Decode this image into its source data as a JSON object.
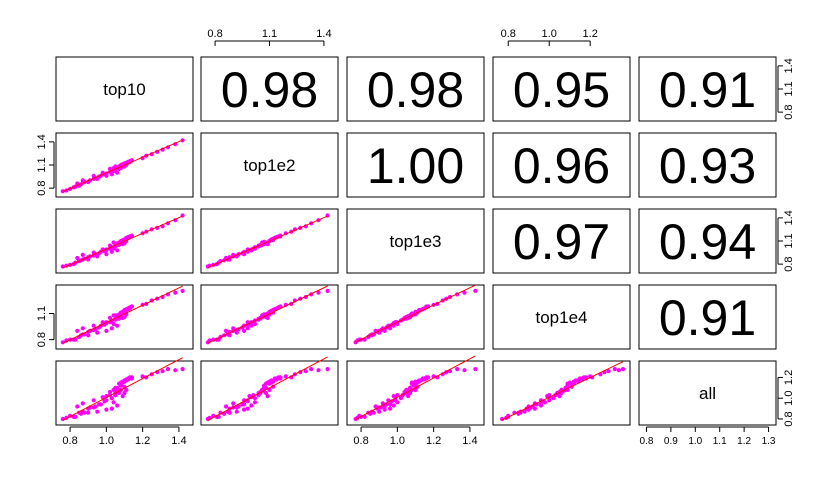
{
  "chart_data": {
    "type": "scatter",
    "variables": [
      "top10",
      "top1e2",
      "top1e3",
      "top1e4",
      "all"
    ],
    "correlations": [
      [
        "",
        "0.98",
        "0.98",
        "0.95",
        "0.91"
      ],
      [
        "",
        "",
        "1.00",
        "0.96",
        "0.93"
      ],
      [
        "",
        "",
        "",
        "0.97",
        "0.94"
      ],
      [
        "",
        "",
        "",
        "",
        "0.91"
      ],
      [
        "",
        "",
        "",
        "",
        ""
      ]
    ],
    "axes": [
      {
        "domain": [
          0.75,
          1.45
        ],
        "ticks": [
          0.8,
          1.0,
          1.2,
          1.4
        ],
        "tick_labels": [
          "0.8",
          "1.0",
          "1.2",
          "1.4"
        ]
      },
      {
        "domain": [
          0.75,
          1.45
        ],
        "ticks": [
          0.8,
          1.1,
          1.4
        ],
        "tick_labels": [
          "0.8",
          "1.1",
          "1.4"
        ]
      },
      {
        "domain": [
          0.75,
          1.45
        ],
        "ticks": [
          0.8,
          1.0,
          1.2,
          1.4
        ],
        "tick_labels": [
          "0.8",
          "1.0",
          "1.2",
          "1.4"
        ]
      },
      {
        "domain": [
          0.75,
          1.37
        ],
        "ticks": [
          0.8,
          1.0,
          1.2
        ],
        "tick_labels": [
          "0.8",
          "1.0",
          "1.2"
        ]
      },
      {
        "domain": [
          0.79,
          1.31
        ],
        "ticks": [
          0.8,
          0.9,
          1.0,
          1.1,
          1.2,
          1.3
        ],
        "tick_labels": [
          "0.8",
          "0.9",
          "1.0",
          "1.1",
          "1.2",
          "1.3"
        ]
      }
    ],
    "left_axis_ticks": {
      "1": {
        "ticks": [
          0.8,
          1.1,
          1.4
        ],
        "tick_labels": [
          "0.8",
          "1.1",
          "1.4"
        ]
      },
      "3": {
        "ticks": [
          0.8,
          1.1
        ],
        "tick_labels": [
          "0.8",
          "1.1"
        ]
      }
    },
    "right_axis_ticks": {
      "2": {
        "ticks": [
          0.8,
          1.1,
          1.4
        ],
        "tick_labels": [
          "0.8",
          "1.1",
          "1.4"
        ]
      },
      "4": {
        "ticks": [
          0.8,
          1.0,
          1.2
        ],
        "tick_labels": [
          "0.8",
          "1.0",
          "1.2"
        ]
      }
    },
    "point_color": "#ff00ff",
    "fit_line_color": "#ff0000",
    "points": [
      [
        0.76,
        0.76,
        0.77,
        0.77,
        0.8
      ],
      [
        0.78,
        0.77,
        0.78,
        0.79,
        0.81
      ],
      [
        0.8,
        0.79,
        0.79,
        0.8,
        0.83
      ],
      [
        0.82,
        0.81,
        0.8,
        0.8,
        0.82
      ],
      [
        0.83,
        0.82,
        0.82,
        0.8,
        0.82
      ],
      [
        0.85,
        0.83,
        0.84,
        0.83,
        0.86
      ],
      [
        0.86,
        0.85,
        0.85,
        0.85,
        0.85
      ],
      [
        0.87,
        0.87,
        0.86,
        0.86,
        0.87
      ],
      [
        0.88,
        0.88,
        0.87,
        0.86,
        0.86
      ],
      [
        0.9,
        0.88,
        0.89,
        0.89,
        0.9
      ],
      [
        0.91,
        0.9,
        0.9,
        0.9,
        0.91
      ],
      [
        0.93,
        0.92,
        0.91,
        0.91,
        0.91
      ],
      [
        0.94,
        0.93,
        0.93,
        0.92,
        0.92
      ],
      [
        0.96,
        0.95,
        0.94,
        0.94,
        0.94
      ],
      [
        0.97,
        0.96,
        0.96,
        0.96,
        0.94
      ],
      [
        0.99,
        0.98,
        0.97,
        0.97,
        0.97
      ],
      [
        1.0,
        0.98,
        0.99,
        1.0,
        0.98
      ],
      [
        1.02,
        1.01,
        1.0,
        1.0,
        1.03
      ],
      [
        1.03,
        1.02,
        1.02,
        1.02,
        1.0
      ],
      [
        1.05,
        1.04,
        1.04,
        1.04,
        1.05
      ],
      [
        1.07,
        1.05,
        1.05,
        1.04,
        1.05
      ],
      [
        1.08,
        1.06,
        1.07,
        1.06,
        1.08
      ],
      [
        0.9,
        0.88,
        0.86,
        0.85,
        0.86
      ],
      [
        0.95,
        0.92,
        0.9,
        0.88,
        0.87
      ],
      [
        1.0,
        0.96,
        0.93,
        0.9,
        0.89
      ],
      [
        0.93,
        0.96,
        0.95,
        0.96,
        0.98
      ],
      [
        0.98,
        1.0,
        0.99,
        1.0,
        1.01
      ],
      [
        1.02,
        1.05,
        1.04,
        1.05,
        1.06
      ],
      [
        1.05,
        1.08,
        1.07,
        1.08,
        1.1
      ],
      [
        1.06,
        1.0,
        0.98,
        0.96,
        0.93
      ],
      [
        1.04,
        1.02,
        1.0,
        0.98,
        0.96
      ],
      [
        1.03,
        0.98,
        0.96,
        0.93,
        0.9
      ],
      [
        1.05,
        1.04,
        1.03,
        1.03,
        1.03
      ],
      [
        1.06,
        1.06,
        1.05,
        1.06,
        1.08
      ],
      [
        1.07,
        1.07,
        1.06,
        1.07,
        1.07
      ],
      [
        1.07,
        1.08,
        1.08,
        1.09,
        1.14
      ],
      [
        1.08,
        1.09,
        1.08,
        1.1,
        1.15
      ],
      [
        1.08,
        1.1,
        1.1,
        1.11,
        1.14
      ],
      [
        1.09,
        1.1,
        1.1,
        1.12,
        1.16
      ],
      [
        1.09,
        1.11,
        1.11,
        1.12,
        1.15
      ],
      [
        1.1,
        1.11,
        1.12,
        1.13,
        1.17
      ],
      [
        1.1,
        1.12,
        1.12,
        1.14,
        1.16
      ],
      [
        1.11,
        1.12,
        1.13,
        1.14,
        1.17
      ],
      [
        1.11,
        1.13,
        1.14,
        1.15,
        1.18
      ],
      [
        1.12,
        1.13,
        1.14,
        1.15,
        1.19
      ],
      [
        1.12,
        1.14,
        1.15,
        1.16,
        1.18
      ],
      [
        1.13,
        1.14,
        1.15,
        1.16,
        1.19
      ],
      [
        1.13,
        1.15,
        1.16,
        1.17,
        1.2
      ],
      [
        1.14,
        1.16,
        1.16,
        1.18,
        1.19
      ],
      [
        1.14,
        1.16,
        1.17,
        1.18,
        1.2
      ],
      [
        1.09,
        1.09,
        1.06,
        1.05,
        1.02
      ],
      [
        1.1,
        1.08,
        1.07,
        1.06,
        1.05
      ],
      [
        1.06,
        1.07,
        1.07,
        1.08,
        1.1
      ],
      [
        1.11,
        1.1,
        1.1,
        1.09,
        1.08
      ],
      [
        1.08,
        1.07,
        1.09,
        1.09,
        1.12
      ],
      [
        1.1,
        1.12,
        1.11,
        1.11,
        1.11
      ],
      [
        1.2,
        1.19,
        1.2,
        1.2,
        1.21
      ],
      [
        1.22,
        1.22,
        1.22,
        1.21,
        1.2
      ],
      [
        1.25,
        1.24,
        1.25,
        1.25,
        1.23
      ],
      [
        1.28,
        1.27,
        1.27,
        1.27,
        1.25
      ],
      [
        1.31,
        1.3,
        1.29,
        1.29,
        1.26
      ],
      [
        1.34,
        1.33,
        1.33,
        1.32,
        1.28
      ],
      [
        1.38,
        1.37,
        1.37,
        1.34,
        1.27
      ],
      [
        1.42,
        1.42,
        1.43,
        1.36,
        1.28
      ],
      [
        0.84,
        0.86,
        0.88,
        0.9,
        0.92
      ],
      [
        0.87,
        0.9,
        0.92,
        0.93,
        0.95
      ],
      [
        1.0,
        0.99,
        0.98,
        0.99,
        1.02
      ],
      [
        1.04,
        1.06,
        1.08,
        1.08,
        1.08
      ]
    ]
  }
}
